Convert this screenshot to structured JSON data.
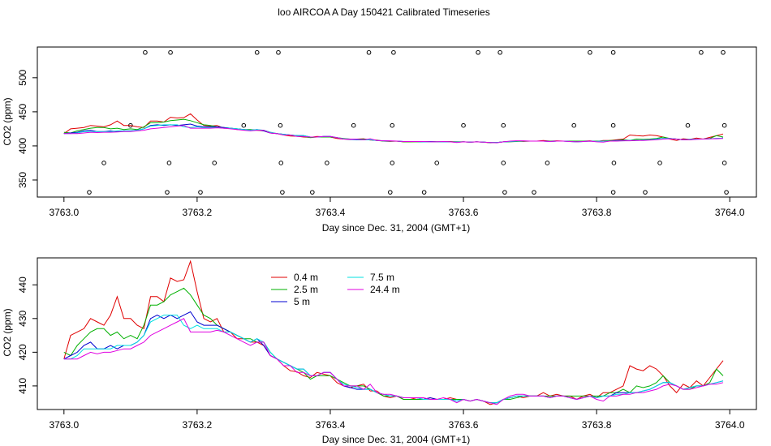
{
  "page": {
    "title": "loo AIRCOA A  Day 150421  Calibrated Timeseries"
  },
  "colors": {
    "0.4 m": "#e00000",
    "2.5 m": "#00b000",
    "5 m": "#0000d0",
    "7.5 m": "#00e0e0",
    "24.4 m": "#e000e0",
    "axis": "#000000",
    "background": "#ffffff"
  },
  "chart_data": [
    {
      "type": "line",
      "xlabel": "Day since Dec. 31, 2004 (GMT+1)",
      "ylabel": "CO2 (ppm)",
      "xlim": [
        2762.9,
        3764.0
      ],
      "x_display_range": [
        3762.96,
        3764.04
      ],
      "ylim": [
        325,
        545
      ],
      "xticks": [
        3763.0,
        3763.2,
        3763.4,
        3763.6,
        3763.8,
        3764.0
      ],
      "xtick_labels": [
        "3763.0",
        "3763.2",
        "3763.4",
        "3763.6",
        "3763.8",
        "3764.0"
      ],
      "yticks": [
        350,
        400,
        450,
        500
      ],
      "ytick_labels": [
        "350",
        "400",
        "450",
        "500"
      ],
      "grid": false,
      "legend": "none",
      "series_ref": "shared_series",
      "markers": {
        "style": "open-circle",
        "rows": [
          {
            "y": 537,
            "x": [
              3763.122,
              3763.16,
              3763.29,
              3763.322,
              3763.458,
              3763.495,
              3763.622,
              3763.655,
              3763.79,
              3763.825,
              3763.957,
              3763.99
            ]
          },
          {
            "y": 430,
            "x": [
              3763.1,
              3763.27,
              3763.325,
              3763.435,
              3763.493,
              3763.6,
              3763.66,
              3763.766,
              3763.825,
              3763.937,
              3763.992
            ]
          },
          {
            "y": 375,
            "x": [
              3763.06,
              3763.158,
              3763.226,
              3763.326,
              3763.395,
              3763.493,
              3763.56,
              3763.66,
              3763.726,
              3763.826,
              3763.895,
              3763.992
            ]
          },
          {
            "y": 332,
            "x": [
              3763.038,
              3763.155,
              3763.205,
              3763.328,
              3763.373,
              3763.49,
              3763.541,
              3763.662,
              3763.706,
              3763.825,
              3763.873,
              3763.995
            ]
          }
        ]
      }
    },
    {
      "type": "line",
      "xlabel": "Day since Dec. 31, 2004 (GMT+1)",
      "ylabel": "CO2 (ppm)",
      "x_display_range": [
        3762.96,
        3764.04
      ],
      "ylim": [
        403,
        448
      ],
      "xticks": [
        3763.0,
        3763.2,
        3763.4,
        3763.6,
        3763.8,
        3764.0
      ],
      "xtick_labels": [
        "3763.0",
        "3763.2",
        "3763.4",
        "3763.6",
        "3763.8",
        "3764.0"
      ],
      "yticks": [
        410,
        420,
        430,
        440
      ],
      "ytick_labels": [
        "410",
        "420",
        "430",
        "440"
      ],
      "grid": false,
      "legend": "top-left",
      "legend_entries": [
        "0.4 m",
        "2.5 m",
        "5 m",
        "7.5 m",
        "24.4 m"
      ],
      "series_ref": "shared_series"
    }
  ],
  "shared_series": {
    "x": [
      3763.0,
      3763.01,
      3763.02,
      3763.03,
      3763.04,
      3763.05,
      3763.06,
      3763.07,
      3763.08,
      3763.09,
      3763.1,
      3763.11,
      3763.12,
      3763.13,
      3763.14,
      3763.15,
      3763.16,
      3763.17,
      3763.18,
      3763.19,
      3763.2,
      3763.21,
      3763.22,
      3763.23,
      3763.24,
      3763.25,
      3763.26,
      3763.27,
      3763.28,
      3763.29,
      3763.3,
      3763.31,
      3763.32,
      3763.33,
      3763.34,
      3763.35,
      3763.36,
      3763.37,
      3763.38,
      3763.39,
      3763.4,
      3763.41,
      3763.42,
      3763.43,
      3763.44,
      3763.45,
      3763.46,
      3763.47,
      3763.48,
      3763.49,
      3763.5,
      3763.51,
      3763.52,
      3763.53,
      3763.54,
      3763.55,
      3763.56,
      3763.57,
      3763.58,
      3763.59,
      3763.6,
      3763.61,
      3763.62,
      3763.63,
      3763.64,
      3763.65,
      3763.66,
      3763.67,
      3763.68,
      3763.69,
      3763.7,
      3763.71,
      3763.72,
      3763.73,
      3763.74,
      3763.75,
      3763.76,
      3763.77,
      3763.78,
      3763.79,
      3763.8,
      3763.81,
      3763.82,
      3763.83,
      3763.84,
      3763.85,
      3763.86,
      3763.87,
      3763.88,
      3763.89,
      3763.9,
      3763.91,
      3763.92,
      3763.93,
      3763.94,
      3763.95,
      3763.96,
      3763.97,
      3763.98,
      3763.99
    ],
    "series": [
      {
        "name": "0.4 m",
        "values": [
          418,
          425,
          426,
          427,
          430,
          429,
          428,
          431,
          436.5,
          430,
          430,
          428,
          427,
          436.5,
          436.5,
          435,
          442,
          441,
          441.5,
          447,
          438,
          430,
          429,
          430,
          426,
          426,
          424,
          424,
          423,
          423,
          422,
          419,
          418,
          416,
          414.5,
          414.2,
          413,
          412.5,
          414,
          413.5,
          413,
          411,
          410,
          409.5,
          410,
          410.5,
          408.5,
          408.5,
          407,
          406.5,
          407,
          406,
          406,
          406.5,
          406,
          406.5,
          406,
          406,
          406.5,
          406,
          406,
          405.5,
          406,
          405.5,
          404.5,
          405,
          406,
          406.5,
          407,
          406.5,
          407,
          407,
          408,
          407,
          407.5,
          407,
          407,
          406,
          407,
          407.5,
          406.5,
          408,
          408,
          409,
          410,
          416,
          415,
          414.5,
          416,
          415,
          413,
          410,
          408,
          410.5,
          409.5,
          411.5,
          410,
          412.5,
          415,
          417.5
        ]
      },
      {
        "name": "2.5 m",
        "values": [
          420,
          419,
          422,
          424,
          426,
          427,
          427,
          425,
          426,
          424,
          425,
          424,
          428,
          434,
          434,
          435,
          437,
          438,
          439,
          437,
          434,
          431,
          430,
          428,
          427,
          426,
          425,
          424,
          424,
          423,
          423,
          420,
          418,
          417,
          416,
          415,
          414,
          412,
          413,
          413,
          413,
          412,
          411,
          410,
          410,
          410,
          409,
          408,
          407,
          407,
          407,
          406,
          406,
          406,
          406,
          406,
          406,
          406,
          406,
          406,
          406,
          405.5,
          406,
          405.5,
          405,
          405,
          406,
          406,
          406.5,
          407,
          407,
          407,
          407,
          407,
          407,
          407,
          407,
          407,
          407,
          407,
          407,
          407,
          408,
          408,
          409,
          408,
          410,
          409.5,
          410,
          411,
          413,
          411,
          410,
          409,
          409,
          410,
          410,
          411,
          415,
          413
        ]
      },
      {
        "name": "5 m",
        "values": [
          418,
          419,
          420,
          422,
          423,
          421,
          421,
          422,
          421,
          422,
          422,
          423,
          425,
          430,
          431,
          430,
          431,
          430,
          431,
          432,
          429,
          428,
          428,
          428,
          427,
          426,
          425,
          424,
          423,
          424,
          422,
          419,
          418,
          417,
          416,
          415,
          415,
          413,
          413,
          414,
          414,
          412,
          410,
          409.5,
          409,
          409,
          409,
          408,
          407.5,
          407,
          407,
          406.5,
          406.5,
          406.5,
          406,
          406.5,
          406,
          406,
          406,
          405.5,
          406,
          405.5,
          406,
          405.5,
          405,
          405,
          406,
          406.5,
          407,
          407,
          407,
          407,
          407,
          406.5,
          407,
          407,
          406.5,
          406,
          406.5,
          407,
          406.5,
          407,
          407,
          408,
          408,
          408,
          408,
          408.5,
          409,
          410,
          411,
          411,
          410,
          409,
          409.5,
          410,
          410,
          410.5,
          411,
          411.5
        ]
      },
      {
        "name": "7.5 m",
        "values": [
          418,
          418,
          419,
          421,
          421,
          421,
          421,
          421,
          422,
          422,
          422,
          423,
          425,
          429,
          430,
          431,
          431,
          431,
          428,
          427,
          428,
          427,
          427,
          427,
          426,
          426,
          425,
          424,
          423,
          424,
          423,
          420,
          418,
          417,
          416,
          415,
          415,
          413,
          413,
          414,
          414,
          412,
          410.5,
          410,
          409.5,
          409,
          409,
          408,
          407.5,
          407,
          407,
          406.5,
          406.5,
          406.5,
          406,
          406,
          406,
          406,
          406,
          405.5,
          406,
          405.5,
          406,
          405.5,
          405,
          405,
          406,
          406.5,
          407,
          407,
          407,
          407,
          407,
          406.5,
          407,
          407,
          406.5,
          406,
          406.5,
          407,
          406.5,
          407,
          407,
          407.5,
          407.5,
          408,
          408,
          408.5,
          409,
          410,
          411,
          411,
          410,
          409,
          409.5,
          410,
          410,
          410.5,
          411,
          411.5
        ]
      },
      {
        "name": "24.4 m",
        "values": [
          418,
          418,
          418,
          419,
          420,
          419.5,
          420,
          420,
          420.5,
          421,
          421,
          422,
          423,
          425,
          426,
          427,
          428,
          429,
          430,
          426,
          426,
          426,
          426,
          426.5,
          426,
          425,
          424,
          423,
          422,
          423,
          423,
          419,
          418,
          416,
          416,
          414,
          414,
          413,
          413,
          414,
          414,
          412,
          410,
          410,
          410,
          409,
          410.5,
          408,
          407.5,
          407.5,
          407,
          406.5,
          406.5,
          406.5,
          406.5,
          406,
          406,
          406.5,
          406,
          405,
          406,
          405.5,
          406,
          405.5,
          405,
          404.5,
          406,
          407,
          407.5,
          407.5,
          407,
          407,
          407,
          406.5,
          407,
          407,
          406.5,
          406,
          406.5,
          407,
          406,
          405.5,
          407,
          407,
          407.5,
          407.5,
          408,
          408,
          408.5,
          409,
          410,
          410.5,
          410,
          409,
          409,
          409.5,
          410,
          410.5,
          410.5,
          411
        ]
      }
    ]
  }
}
